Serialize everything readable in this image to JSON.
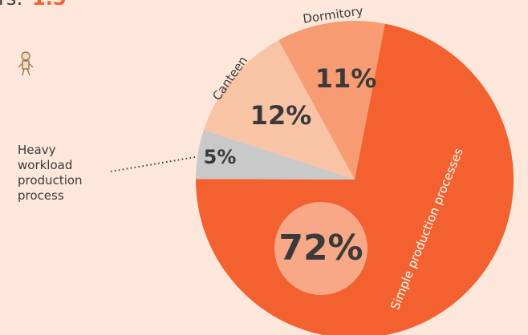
{
  "chart_data": {
    "type": "pie",
    "title_fragment": "rs:",
    "title_value": "1.5",
    "categories": [
      "Simple production processes",
      "Heavy workload production process",
      "Canteen",
      "Dormitory"
    ],
    "values": [
      72,
      5,
      12,
      11
    ],
    "value_labels": [
      "72%",
      "5%",
      "12%",
      "11%"
    ],
    "colors": [
      "#f2612f",
      "#c9c9c9",
      "#f9c3a6",
      "#f79b72"
    ]
  }
}
